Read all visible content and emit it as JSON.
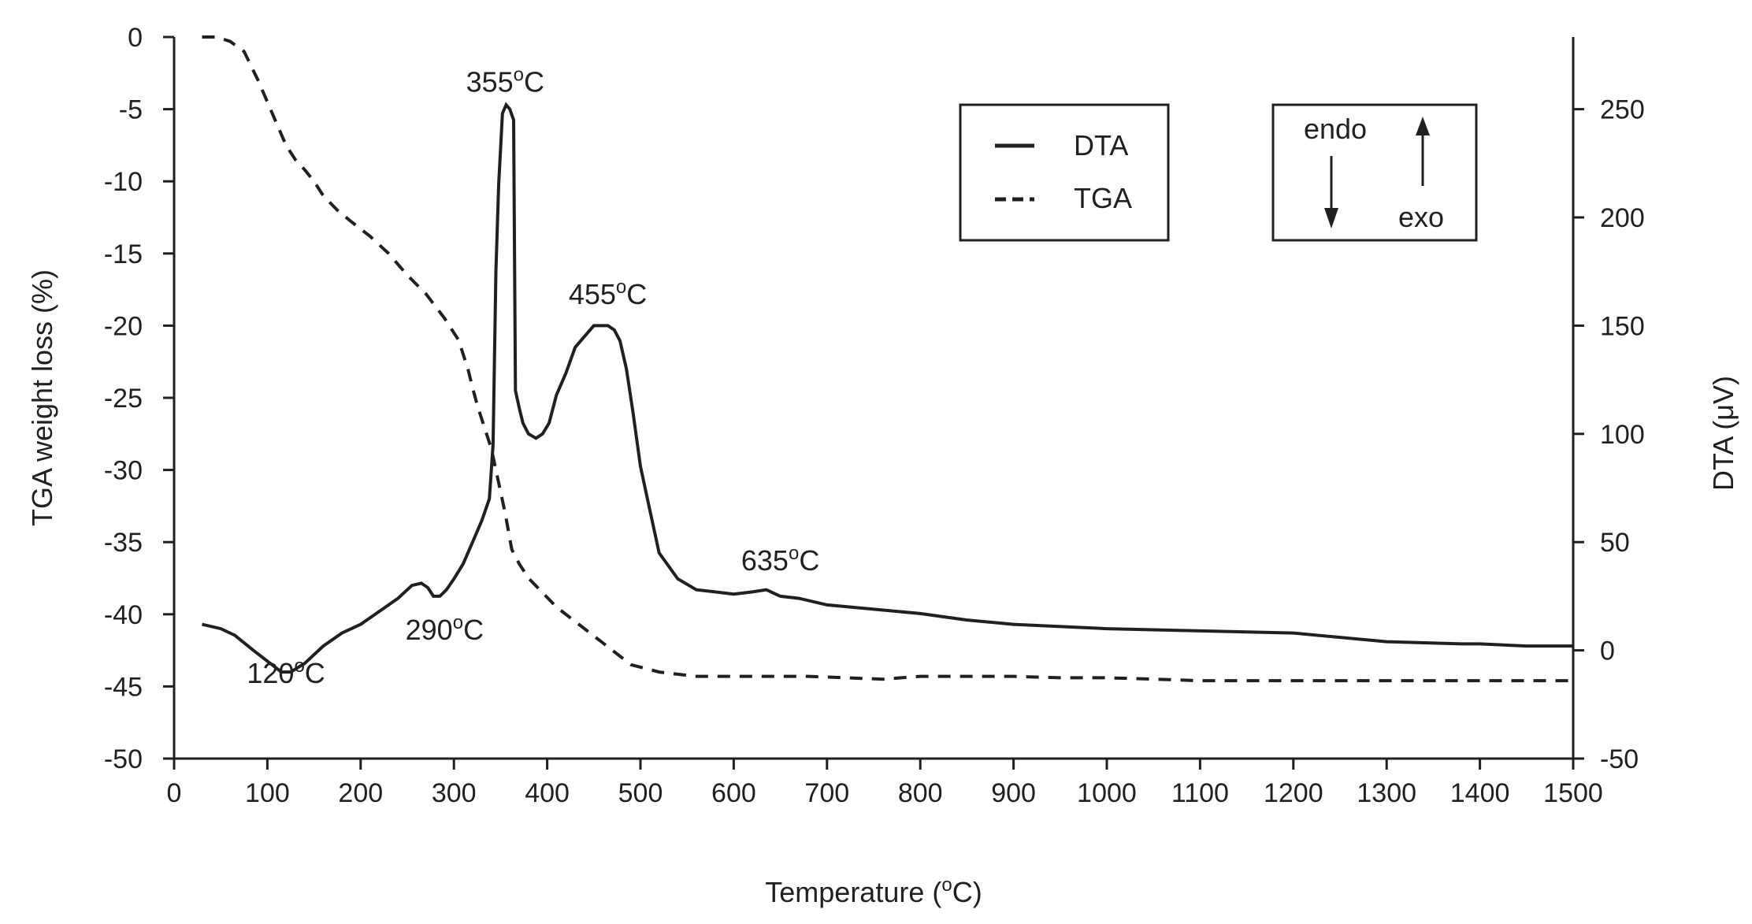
{
  "chart_data": {
    "type": "line",
    "title": "",
    "xlabel": "Temperature (",
    "xlabel_sup": "o",
    "xlabel_tail": "C)",
    "ylabel_left": "TGA weight loss (%)",
    "ylabel_right": "DTA (μV)",
    "xlim": [
      0,
      1500
    ],
    "ylim_left": [
      -50,
      0
    ],
    "ylim_right": [
      -50,
      280
    ],
    "x_ticks": [
      0,
      100,
      200,
      300,
      400,
      500,
      600,
      700,
      800,
      900,
      1000,
      1100,
      1200,
      1300,
      1400,
      1500
    ],
    "y_ticks_left": [
      0,
      -5,
      -10,
      -15,
      -20,
      -25,
      -30,
      -35,
      -40,
      -45,
      -50
    ],
    "y_ticks_right": [
      250,
      200,
      150,
      100,
      50,
      0,
      -50
    ],
    "grid": false,
    "colors": {
      "line": "#231f20",
      "axis": "#231f20"
    },
    "legend": {
      "placement": "top-right",
      "entries": [
        {
          "label": "DTA",
          "style": "solid"
        },
        {
          "label": "TGA",
          "style": "dashed"
        }
      ]
    },
    "direction_box": {
      "endo": "endo",
      "exo": "exo"
    },
    "annotations": [
      {
        "value": "120",
        "sup": "o",
        "unit": "C",
        "x": 120,
        "y_right": -15
      },
      {
        "value": "290",
        "sup": "o",
        "unit": "C",
        "x": 290,
        "y_right": 5
      },
      {
        "value": "355",
        "sup": "o",
        "unit": "C",
        "x": 355,
        "y_right": 258
      },
      {
        "value": "455",
        "sup": "o",
        "unit": "C",
        "x": 465,
        "y_right": 160
      },
      {
        "value": "635",
        "sup": "o",
        "unit": "C",
        "x": 650,
        "y_right": 37
      }
    ],
    "series": [
      {
        "name": "DTA",
        "axis": "right",
        "style": "solid",
        "x": [
          30,
          50,
          65,
          85,
          100,
          115,
          125,
          140,
          160,
          180,
          200,
          220,
          240,
          255,
          265,
          272,
          278,
          285,
          292,
          300,
          310,
          320,
          330,
          338,
          342,
          345,
          348,
          352,
          356,
          360,
          364,
          366,
          370,
          374,
          380,
          388,
          395,
          402,
          410,
          420,
          430,
          440,
          450,
          458,
          465,
          472,
          478,
          485,
          492,
          500,
          510,
          520,
          540,
          560,
          580,
          600,
          620,
          635,
          650,
          670,
          700,
          750,
          800,
          850,
          900,
          1000,
          1100,
          1200,
          1300,
          1380,
          1400,
          1450,
          1500
        ],
        "y": [
          12,
          10,
          7,
          0,
          -5,
          -10,
          -10,
          -6,
          2,
          8,
          12,
          18,
          24,
          30,
          31,
          29,
          25,
          25,
          28,
          33,
          40,
          50,
          60,
          70,
          95,
          175,
          215,
          248,
          252,
          250,
          245,
          120,
          112,
          105,
          100,
          98,
          100,
          105,
          118,
          128,
          140,
          145,
          150,
          150,
          150,
          148,
          143,
          130,
          110,
          85,
          65,
          45,
          33,
          28,
          27,
          26,
          27,
          28,
          25,
          24,
          21,
          19,
          17,
          14,
          12,
          10,
          9,
          8,
          4,
          3,
          3,
          2,
          2
        ]
      },
      {
        "name": "TGA",
        "axis": "left",
        "style": "dashed",
        "x": [
          30,
          45,
          60,
          75,
          90,
          100,
          110,
          120,
          130,
          140,
          150,
          160,
          175,
          190,
          210,
          230,
          250,
          270,
          290,
          305,
          315,
          320,
          325,
          330,
          335,
          340,
          345,
          350,
          355,
          362,
          370,
          380,
          395,
          410,
          430,
          450,
          470,
          490,
          520,
          560,
          620,
          680,
          720,
          760,
          800,
          850,
          900,
          950,
          1000,
          1050,
          1100,
          1200,
          1300,
          1400,
          1500
        ],
        "y": [
          0,
          0,
          -0.3,
          -1,
          -3,
          -4.5,
          -6,
          -7.5,
          -8.5,
          -9.2,
          -10,
          -11,
          -12,
          -12.8,
          -13.8,
          -15,
          -16.5,
          -17.8,
          -19.5,
          -21,
          -23,
          -24.3,
          -25.5,
          -26.5,
          -27.5,
          -28.5,
          -30,
          -31.5,
          -33,
          -35.5,
          -36.5,
          -37.5,
          -38.5,
          -39.5,
          -40.5,
          -41.5,
          -42.5,
          -43.5,
          -44,
          -44.3,
          -44.3,
          -44.3,
          -44.4,
          -44.5,
          -44.3,
          -44.3,
          -44.3,
          -44.4,
          -44.4,
          -44.5,
          -44.6,
          -44.6,
          -44.6,
          -44.6,
          -44.6
        ]
      }
    ]
  }
}
